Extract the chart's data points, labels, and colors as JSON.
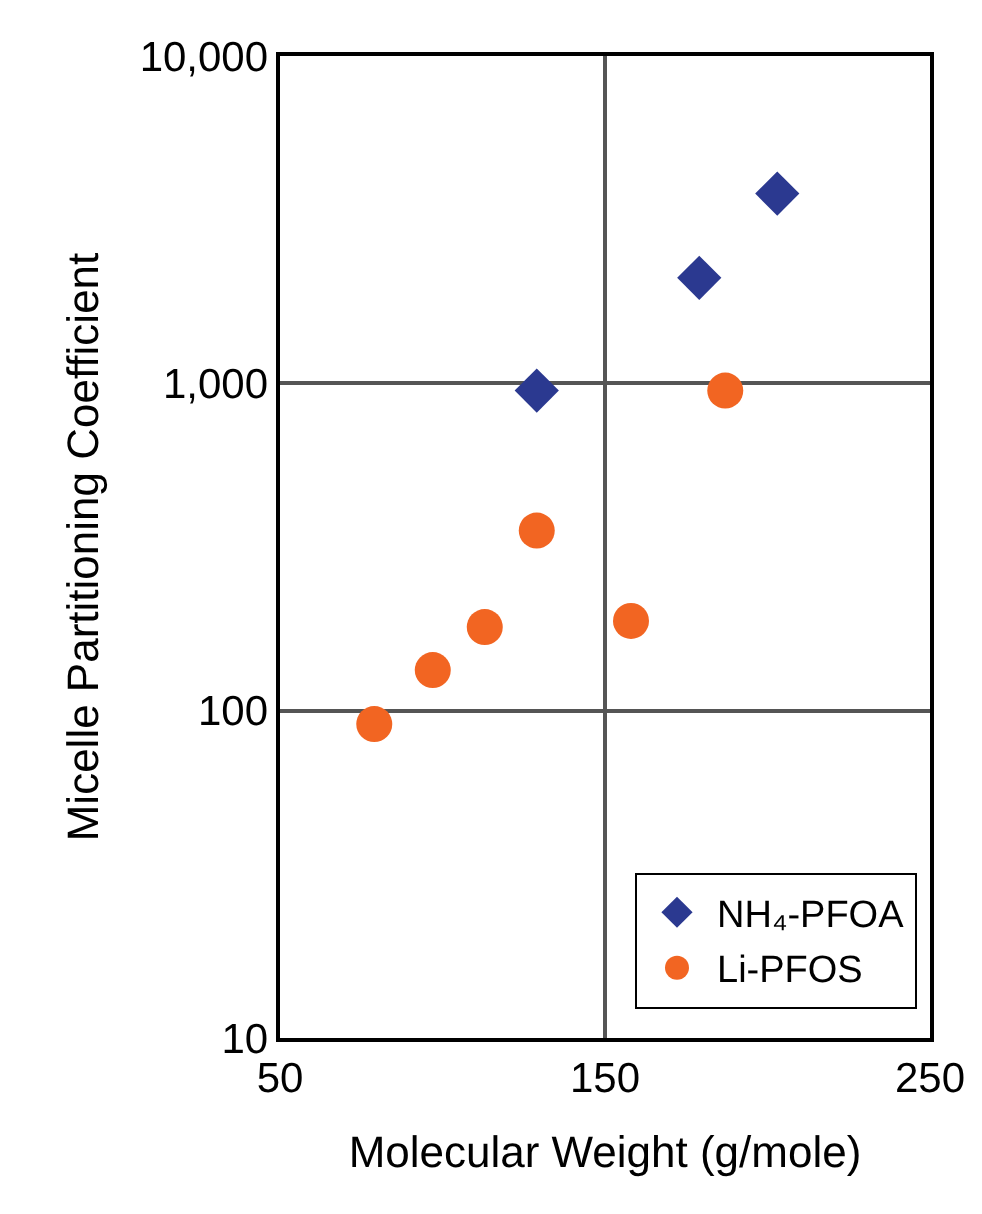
{
  "chart_data": {
    "type": "scatter",
    "xlabel": "Molecular Weight (g/mole)",
    "ylabel": "Micelle Partitioning Coefficient",
    "log": "y",
    "grid": true,
    "legend": "bottom right",
    "xlim": [
      50,
      250
    ],
    "xticks": [
      50,
      150,
      250
    ],
    "ylim": [
      10,
      10000
    ],
    "yticks": [
      10,
      100,
      {
        "value": 1000,
        "label": "1,000"
      },
      {
        "value": 10000,
        "label": "10,000"
      }
    ],
    "series": [
      {
        "name": "NH₄-PFOA",
        "color": "#2b3990",
        "marker": "diamond",
        "x": [
          129,
          179,
          203
        ],
        "values": [
          950,
          2100,
          3800
        ]
      },
      {
        "name": "Li-PFOS",
        "color": "#f26522",
        "marker": "circle",
        "x": [
          79,
          97,
          113,
          129,
          158,
          187
        ],
        "values": [
          91,
          133,
          180,
          355,
          188,
          950
        ]
      }
    ]
  }
}
